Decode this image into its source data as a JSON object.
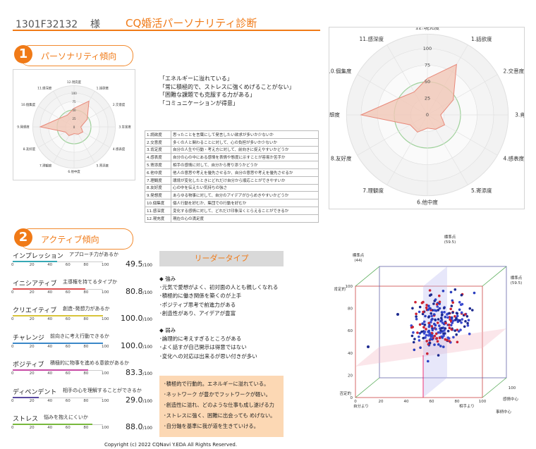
{
  "header": {
    "id": "1301F32132",
    "honorific": "様",
    "title": "CQ婚活パーソナリティ診断"
  },
  "section1": {
    "num": "1",
    "label": "パーソナリティ傾向"
  },
  "section2": {
    "num": "2",
    "label": "アクティブ傾向"
  },
  "quotes": [
    "「エネルギーに溢れている」",
    "「常に積極的で、ストレスに強くめげることがない」",
    "「困難な課題でも克服する力がある」",
    "「コミュニケーションが得意」"
  ],
  "definitions": [
    {
      "key": "1.読欲度",
      "desc": "思ったことを言葉にして発言したい欲求が多いか少ないか"
    },
    {
      "key": "2.交意度",
      "desc": "多くの人と関わることに対して、心の負担が多いか少ないか"
    },
    {
      "key": "3.肯定度",
      "desc": "自分の人生や行動・考え方に対して、前向きに捉えやすいかどうか"
    },
    {
      "key": "4.感表度",
      "desc": "自分の心の中にある感情を表情や態度に示すことが容易か苦手か"
    },
    {
      "key": "5.寄添度",
      "desc": "相手の感情に対して、自分から寄り添うかどうか"
    },
    {
      "key": "6.他中度",
      "desc": "他人の意思や考えを優先させるか、自分の意思や考えを優先させるか"
    },
    {
      "key": "7.理観度",
      "desc": "環境が変化したときにどれだけ自分から順応ことができやすいか"
    },
    {
      "key": "8.友好度",
      "desc": "心の中を伝えたい気持ちの強さ"
    },
    {
      "key": "9.発想度",
      "desc": "あらゆる物事に対して、自分のアイデアがひらめきやすいかどうか"
    },
    {
      "key": "10.個集度",
      "desc": "個人行動を好むか、集団での行動を好むか"
    },
    {
      "key": "11.感深度",
      "desc": "変化する感情に対して、どれだけ印象深くとらえることができるか"
    },
    {
      "key": "12.現充度",
      "desc": "現在の心の満足度"
    }
  ],
  "radar": {
    "axes": [
      "12.現充度",
      "1.話欲度",
      "2.交意度",
      "3.肯定度",
      "4.感表度",
      "5.寄添度",
      "6.他中度",
      "7.理観度",
      "8.友好度",
      "9.発想度",
      "10.個集度",
      "11.感深度"
    ],
    "values": [
      55,
      88,
      45,
      20,
      30,
      25,
      20,
      30,
      30,
      100,
      50,
      40
    ],
    "ticks": [
      "0",
      "25",
      "50",
      "75",
      "100"
    ],
    "colors": {
      "fill": "#f1c7b6",
      "stroke": "#e8897a",
      "ring": "#9fd19b"
    }
  },
  "ticks_bar": [
    "0",
    "20",
    "40",
    "60",
    "80",
    "100"
  ],
  "metrics": [
    {
      "name": "インプレッション",
      "desc": "アプローチ力があるか",
      "value": "49.5",
      "unit": "/100",
      "color": "#37a9b5"
    },
    {
      "name": "イニシアティブ",
      "desc": "主導権を持てるタイプか",
      "value": "80.8",
      "unit": "/100",
      "color": "#e05050"
    },
    {
      "name": "クリエイティブ",
      "desc": "創造･発想力があるか",
      "value": "100.0",
      "unit": "/100",
      "color": "#d8c43a"
    },
    {
      "name": "チャレンジ",
      "desc": "前向きに考え行動できるか",
      "value": "100.0",
      "unit": "/100",
      "color": "#3a87c8"
    },
    {
      "name": "ポジティブ",
      "desc": "積極的に物事を進める意欲があるか",
      "value": "83.3",
      "unit": "/100",
      "color": "#c84aa5"
    },
    {
      "name": "ディペンデント",
      "desc": "相手の心を理解することができるか",
      "value": "29.0",
      "unit": "/100",
      "color": "#5a4aa0"
    },
    {
      "name": "ストレス",
      "desc": "悩みを抱えにくいか",
      "value": "88.0",
      "unit": "/100",
      "color": "#78b83c"
    }
  ],
  "leader": "リーダータイプ",
  "strengths": {
    "title": "◆ 強み",
    "items": [
      "･元気で愛想がよく、初対面の人とも親しくなれる",
      "･積極的に働き関係を築くのが上手",
      "･ポジティブ思考で前進力がある",
      "･創造性があり、アイデアが豊富"
    ]
  },
  "weaknesses": {
    "title": "◆ 弱み",
    "items": [
      "･論理的に考えすぎるところがある",
      "･よく話すが自己開示は得意ではない",
      "･変化への対応は出来るが思い付きが多い"
    ]
  },
  "summary": [
    "･積極的で行動的。エネルギーに溢れている。",
    "･ネットワーク が豊かでフットワークが軽い。",
    "･創造性に溢れ、どのような仕事も成し遂げる力",
    "･ストレスに強く、困難に出会っても めげない。",
    "･自分軸を基準に我が道を生きていける。"
  ],
  "cube": {
    "labels": {
      "top": "標準点",
      "top2": "(59.5)",
      "left": "標準点",
      "left2": "(44)",
      "right": "標準点",
      "right2": "(59.5)",
      "yAxis": "肯定的",
      "yAxisB": "否定的",
      "xLeft": "自分より",
      "xRight": "相手より",
      "z1": "感情中心",
      "z2": "事柄中心",
      "zTop": "100"
    },
    "ticks": [
      "0",
      "20",
      "40",
      "60",
      "80",
      "100"
    ]
  },
  "copyright": "Copyright (c) 2022 CQNavi Y.EDA All Rights Reserved."
}
